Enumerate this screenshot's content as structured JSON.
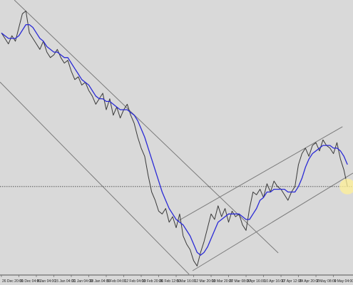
{
  "chart_data": {
    "type": "line",
    "categories": [
      "26 Dec 20:00",
      null,
      null,
      null,
      null,
      "31 Dec 04:00",
      null,
      null,
      null,
      null,
      "8 Jan 04:00",
      null,
      null,
      null,
      null,
      "15 Jan 04:00",
      null,
      null,
      null,
      null,
      "21 Jan 04:00",
      null,
      null,
      null,
      null,
      "28 Jan 04:00",
      null,
      null,
      null,
      null,
      "5 Feb 04:00",
      null,
      null,
      null,
      null,
      "12 Feb 04:00",
      null,
      null,
      null,
      null,
      "19 Feb 20:00",
      null,
      null,
      null,
      null,
      "26 Feb 12:00",
      null,
      null,
      null,
      null,
      "5 Mar 16:00",
      null,
      null,
      null,
      null,
      "12 Mar 20:00",
      null,
      null,
      null,
      null,
      "19 Mar 20:00",
      null,
      null,
      null,
      null,
      "27 Mar 08:00",
      null,
      null,
      null,
      null,
      "3 Apr 16:00",
      null,
      null,
      null,
      null,
      "10 Apr 16:00",
      null,
      null,
      null,
      null,
      "17 Apr 12:00",
      null,
      null,
      null,
      null,
      "24 Apr 20:00",
      null,
      null,
      null,
      null,
      "2 May 08:00",
      null,
      null,
      null,
      null,
      "9 May 04:00",
      null,
      null,
      null,
      null
    ],
    "series": [
      {
        "color": "#3a3a3a",
        "values": [
          88,
          86,
          84,
          87,
          85,
          90,
          95,
          96,
          88,
          86,
          84,
          82,
          85,
          81,
          79,
          80,
          82,
          79,
          77,
          78,
          74,
          71,
          72,
          69,
          70,
          67,
          65,
          62,
          64,
          66,
          60,
          64,
          58,
          61,
          57,
          60,
          62,
          58,
          55,
          50,
          46,
          43,
          36,
          30,
          27,
          23,
          22,
          24,
          19,
          21,
          17,
          22,
          14,
          11,
          9,
          5,
          3,
          8,
          12,
          17,
          22,
          20,
          25,
          21,
          24,
          19,
          23,
          21,
          22,
          18,
          16,
          24,
          30,
          29,
          31,
          28,
          33,
          30,
          34,
          32,
          31,
          29,
          27,
          30,
          32,
          40,
          44,
          46,
          43,
          47,
          48,
          45,
          49,
          47,
          46,
          44,
          48,
          42,
          38,
          32
        ]
      },
      {
        "color": "#2a2ad6",
        "values": [
          88,
          87,
          86,
          86,
          86,
          87,
          89,
          91,
          91,
          90,
          88,
          86,
          85,
          83,
          82,
          81,
          81,
          80,
          79,
          79,
          77,
          75,
          73,
          71,
          70,
          69,
          67,
          65,
          64,
          64,
          63,
          63,
          62,
          61,
          60,
          60,
          60,
          59,
          58,
          56,
          53,
          50,
          46,
          42,
          38,
          34,
          30,
          27,
          24,
          22,
          20,
          19,
          18,
          16,
          14,
          11,
          8,
          7,
          8,
          10,
          13,
          16,
          19,
          20,
          21,
          22,
          22,
          22,
          22,
          21,
          20,
          20,
          22,
          24,
          27,
          28,
          30,
          30,
          31,
          31,
          31,
          31,
          30,
          30,
          30,
          32,
          35,
          39,
          42,
          44,
          45,
          46,
          47,
          47,
          47,
          46,
          46,
          45,
          43,
          40
        ]
      }
    ],
    "trend_lines": [
      {
        "x": [
          3.7,
          79.2
        ],
        "y": [
          100,
          7.8
        ]
      },
      {
        "x": [
          -0.4,
          53.7
        ],
        "y": [
          70.1,
          0
        ]
      },
      {
        "x": [
          54.7,
          100.6
        ],
        "y": [
          1.3,
          36.9
        ]
      },
      {
        "x": [
          50.6,
          97.6
        ],
        "y": [
          19.5,
          53.8
        ]
      }
    ],
    "current_price": 32,
    "xlim": [
      -0.4,
      100.6
    ],
    "ylim": [
      0,
      100
    ]
  }
}
